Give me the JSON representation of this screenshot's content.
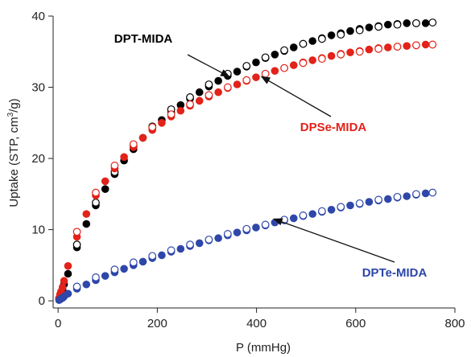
{
  "chart_data": {
    "type": "scatter",
    "xlabel": "P (mmHg)",
    "ylabel_main": "Uptake (STP, cm",
    "ylabel_sup": "3",
    "ylabel_tail": "/g)",
    "xlim": [
      -10,
      800
    ],
    "ylim": [
      -1,
      40
    ],
    "xticks": [
      0,
      200,
      400,
      600,
      800
    ],
    "yticks": [
      0,
      10,
      20,
      30,
      40
    ],
    "series": [
      {
        "name": "DPT-MIDA",
        "color": "#000000",
        "adsorption": [
          [
            2,
            0.3
          ],
          [
            4,
            0.7
          ],
          [
            6,
            1.1
          ],
          [
            9,
            1.6
          ],
          [
            12,
            2.3
          ],
          [
            20,
            3.8
          ],
          [
            38,
            7.5
          ],
          [
            57,
            10.8
          ],
          [
            76,
            13.4
          ],
          [
            95,
            15.7
          ],
          [
            114,
            17.8
          ],
          [
            133,
            19.7
          ],
          [
            152,
            21.3
          ],
          [
            171,
            22.9
          ],
          [
            190,
            24.2
          ],
          [
            209,
            25.4
          ],
          [
            228,
            26.5
          ],
          [
            247,
            27.5
          ],
          [
            266,
            28.4
          ],
          [
            285,
            29.3
          ],
          [
            304,
            30.1
          ],
          [
            323,
            30.9
          ],
          [
            342,
            31.6
          ],
          [
            361,
            32.2
          ],
          [
            380,
            32.9
          ],
          [
            399,
            33.5
          ],
          [
            418,
            34.1
          ],
          [
            437,
            34.6
          ],
          [
            456,
            35.1
          ],
          [
            475,
            35.6
          ],
          [
            494,
            36.1
          ],
          [
            513,
            36.5
          ],
          [
            532,
            36.9
          ],
          [
            551,
            37.3
          ],
          [
            570,
            37.6
          ],
          [
            589,
            37.9
          ],
          [
            608,
            38.2
          ],
          [
            627,
            38.4
          ],
          [
            646,
            38.6
          ],
          [
            665,
            38.8
          ],
          [
            684,
            38.9
          ],
          [
            703,
            39.0
          ],
          [
            722,
            39.0
          ],
          [
            741,
            39.0
          ]
        ],
        "desorption": [
          [
            38,
            7.9
          ],
          [
            76,
            13.8
          ],
          [
            114,
            18.1
          ],
          [
            152,
            21.7
          ],
          [
            190,
            24.5
          ],
          [
            228,
            26.9
          ],
          [
            266,
            28.6
          ],
          [
            304,
            30.4
          ],
          [
            342,
            31.9
          ],
          [
            380,
            33.0
          ],
          [
            418,
            34.2
          ],
          [
            456,
            35.2
          ],
          [
            494,
            36.1
          ],
          [
            532,
            36.8
          ],
          [
            570,
            37.4
          ],
          [
            608,
            38.0
          ],
          [
            646,
            38.5
          ],
          [
            684,
            38.8
          ],
          [
            722,
            39.0
          ],
          [
            755,
            39.1
          ]
        ]
      },
      {
        "name": "DPSe-MIDA",
        "color": "#e32219",
        "adsorption": [
          [
            2,
            0.4
          ],
          [
            4,
            0.9
          ],
          [
            6,
            1.3
          ],
          [
            9,
            1.9
          ],
          [
            12,
            2.8
          ],
          [
            20,
            4.9
          ],
          [
            38,
            9.0
          ],
          [
            57,
            12.2
          ],
          [
            76,
            14.8
          ],
          [
            95,
            16.8
          ],
          [
            114,
            18.6
          ],
          [
            133,
            20.2
          ],
          [
            152,
            21.6
          ],
          [
            171,
            22.9
          ],
          [
            190,
            24.0
          ],
          [
            209,
            25.0
          ],
          [
            228,
            25.9
          ],
          [
            247,
            26.7
          ],
          [
            266,
            27.4
          ],
          [
            285,
            28.1
          ],
          [
            304,
            28.7
          ],
          [
            323,
            29.3
          ],
          [
            342,
            29.9
          ],
          [
            361,
            30.4
          ],
          [
            380,
            30.9
          ],
          [
            399,
            31.4
          ],
          [
            418,
            31.9
          ],
          [
            437,
            32.3
          ],
          [
            456,
            32.7
          ],
          [
            475,
            33.1
          ],
          [
            494,
            33.5
          ],
          [
            513,
            33.8
          ],
          [
            532,
            34.1
          ],
          [
            551,
            34.4
          ],
          [
            570,
            34.7
          ],
          [
            589,
            34.9
          ],
          [
            608,
            35.1
          ],
          [
            627,
            35.3
          ],
          [
            646,
            35.5
          ],
          [
            665,
            35.6
          ],
          [
            684,
            35.7
          ],
          [
            703,
            35.8
          ],
          [
            722,
            35.9
          ],
          [
            741,
            36.0
          ]
        ],
        "desorption": [
          [
            38,
            9.7
          ],
          [
            76,
            15.2
          ],
          [
            114,
            19.0
          ],
          [
            152,
            22.0
          ],
          [
            190,
            24.4
          ],
          [
            228,
            26.2
          ],
          [
            266,
            27.6
          ],
          [
            304,
            28.9
          ],
          [
            342,
            30.0
          ],
          [
            380,
            31.0
          ],
          [
            418,
            31.9
          ],
          [
            456,
            32.7
          ],
          [
            494,
            33.4
          ],
          [
            532,
            34.0
          ],
          [
            570,
            34.6
          ],
          [
            608,
            35.0
          ],
          [
            646,
            35.4
          ],
          [
            684,
            35.7
          ],
          [
            722,
            35.9
          ],
          [
            755,
            36.0
          ]
        ]
      },
      {
        "name": "DPTe-MIDA",
        "color": "#2e47a8",
        "adsorption": [
          [
            2,
            0.1
          ],
          [
            4,
            0.2
          ],
          [
            6,
            0.3
          ],
          [
            9,
            0.4
          ],
          [
            12,
            0.6
          ],
          [
            20,
            1.0
          ],
          [
            38,
            1.7
          ],
          [
            57,
            2.3
          ],
          [
            76,
            2.9
          ],
          [
            95,
            3.5
          ],
          [
            114,
            4.0
          ],
          [
            133,
            4.5
          ],
          [
            152,
            5.0
          ],
          [
            171,
            5.5
          ],
          [
            190,
            6.0
          ],
          [
            209,
            6.4
          ],
          [
            228,
            6.9
          ],
          [
            247,
            7.3
          ],
          [
            266,
            7.7
          ],
          [
            285,
            8.1
          ],
          [
            304,
            8.5
          ],
          [
            323,
            8.8
          ],
          [
            342,
            9.2
          ],
          [
            361,
            9.6
          ],
          [
            380,
            9.9
          ],
          [
            399,
            10.3
          ],
          [
            418,
            10.6
          ],
          [
            437,
            11.0
          ],
          [
            456,
            11.3
          ],
          [
            475,
            11.6
          ],
          [
            494,
            11.9
          ],
          [
            513,
            12.2
          ],
          [
            532,
            12.5
          ],
          [
            551,
            12.8
          ],
          [
            570,
            13.1
          ],
          [
            589,
            13.4
          ],
          [
            608,
            13.6
          ],
          [
            627,
            13.9
          ],
          [
            646,
            14.1
          ],
          [
            665,
            14.3
          ],
          [
            684,
            14.5
          ],
          [
            703,
            14.7
          ],
          [
            722,
            14.9
          ],
          [
            741,
            15.1
          ]
        ],
        "desorption": [
          [
            38,
            2.0
          ],
          [
            76,
            3.3
          ],
          [
            114,
            4.4
          ],
          [
            152,
            5.4
          ],
          [
            190,
            6.3
          ],
          [
            228,
            7.1
          ],
          [
            266,
            7.9
          ],
          [
            304,
            8.6
          ],
          [
            342,
            9.4
          ],
          [
            380,
            10.1
          ],
          [
            418,
            10.7
          ],
          [
            456,
            11.4
          ],
          [
            494,
            12.0
          ],
          [
            532,
            12.6
          ],
          [
            570,
            13.2
          ],
          [
            608,
            13.7
          ],
          [
            646,
            14.2
          ],
          [
            684,
            14.6
          ],
          [
            722,
            15.0
          ],
          [
            755,
            15.2
          ]
        ]
      }
    ],
    "annotations": [
      {
        "text": "DPT-MIDA",
        "color": "#000000",
        "target": [
          345,
          31.5
        ]
      },
      {
        "text": "DPSe-MIDA",
        "color": "#e32219",
        "target": [
          410,
          31.5
        ]
      },
      {
        "text": "DPTe-MIDA",
        "color": "#2e47a8",
        "target": [
          435,
          11.5
        ]
      }
    ]
  }
}
